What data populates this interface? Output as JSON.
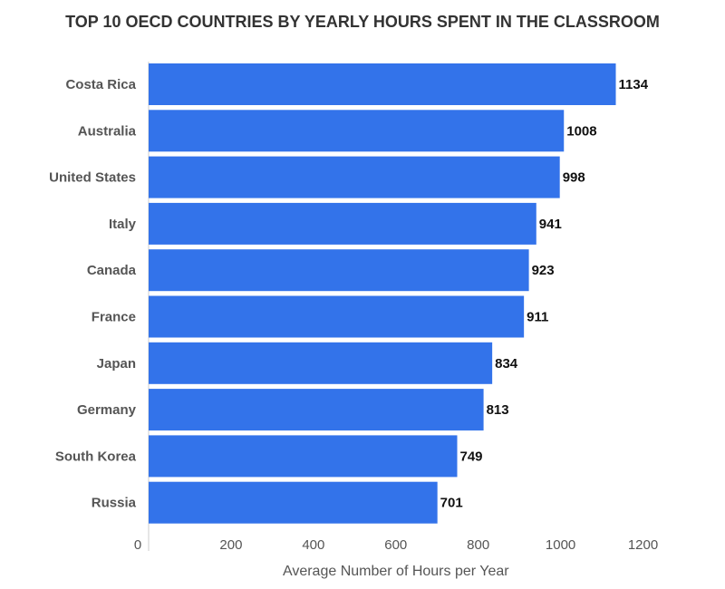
{
  "chart_data": {
    "type": "bar",
    "orientation": "horizontal",
    "title": "TOP 10 OECD COUNTRIES BY YEARLY HOURS SPENT IN THE CLASSROOM",
    "xlabel": "Average Number of Hours per Year",
    "ylabel": "",
    "categories": [
      "Costa Rica",
      "Australia",
      "United States",
      "Italy",
      "Canada",
      "France",
      "Japan",
      "Germany",
      "South Korea",
      "Russia"
    ],
    "values": [
      1134,
      1008,
      998,
      941,
      923,
      911,
      834,
      813,
      749,
      701
    ],
    "xlim": [
      0,
      1200
    ],
    "x_ticks": [
      0,
      200,
      400,
      600,
      800,
      1000,
      1200
    ],
    "grid": false,
    "legend": "none",
    "bar_color": "#3373ea"
  }
}
